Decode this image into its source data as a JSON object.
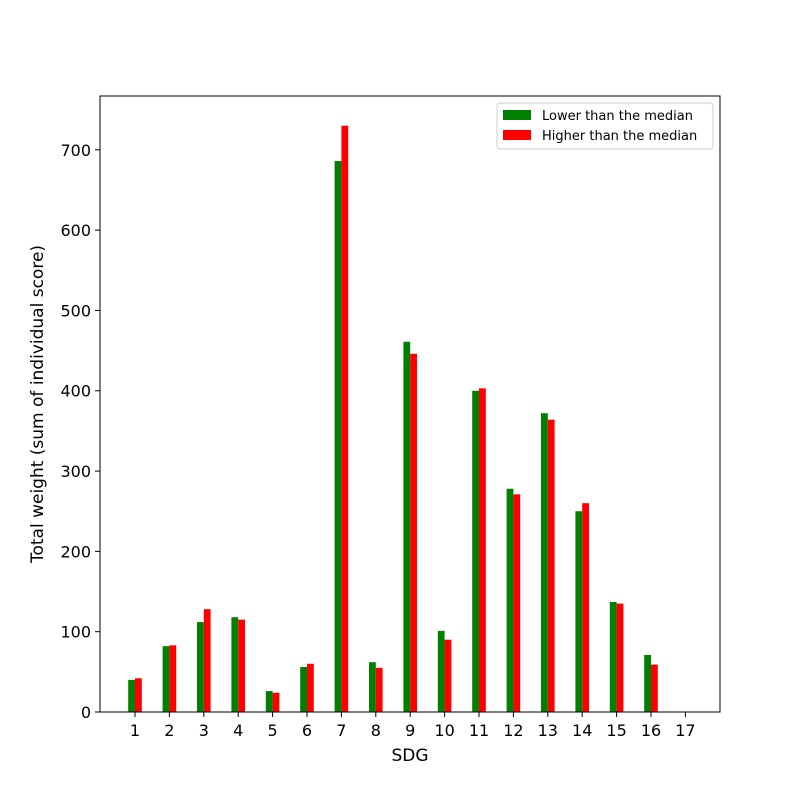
{
  "chart_data": {
    "type": "bar",
    "categories": [
      "1",
      "2",
      "3",
      "4",
      "5",
      "6",
      "7",
      "8",
      "9",
      "10",
      "11",
      "12",
      "13",
      "14",
      "15",
      "16",
      "17"
    ],
    "series": [
      {
        "name": "Lower than the median",
        "color": "#008000",
        "values": [
          40,
          82,
          112,
          118,
          26,
          56,
          686,
          62,
          461,
          101,
          400,
          278,
          372,
          250,
          137,
          71,
          0
        ]
      },
      {
        "name": "Higher than the median",
        "color": "#ff0000",
        "values": [
          42,
          83,
          128,
          115,
          24,
          60,
          730,
          55,
          446,
          90,
          403,
          271,
          364,
          260,
          135,
          59,
          0
        ]
      }
    ],
    "title": "",
    "xlabel": "SDG",
    "ylabel": "Total weight (sum of individual score)",
    "ylim": [
      0,
      767
    ],
    "yticks": [
      0,
      100,
      200,
      300,
      400,
      500,
      600,
      700
    ],
    "grid": false,
    "legend_position": "top-right"
  }
}
